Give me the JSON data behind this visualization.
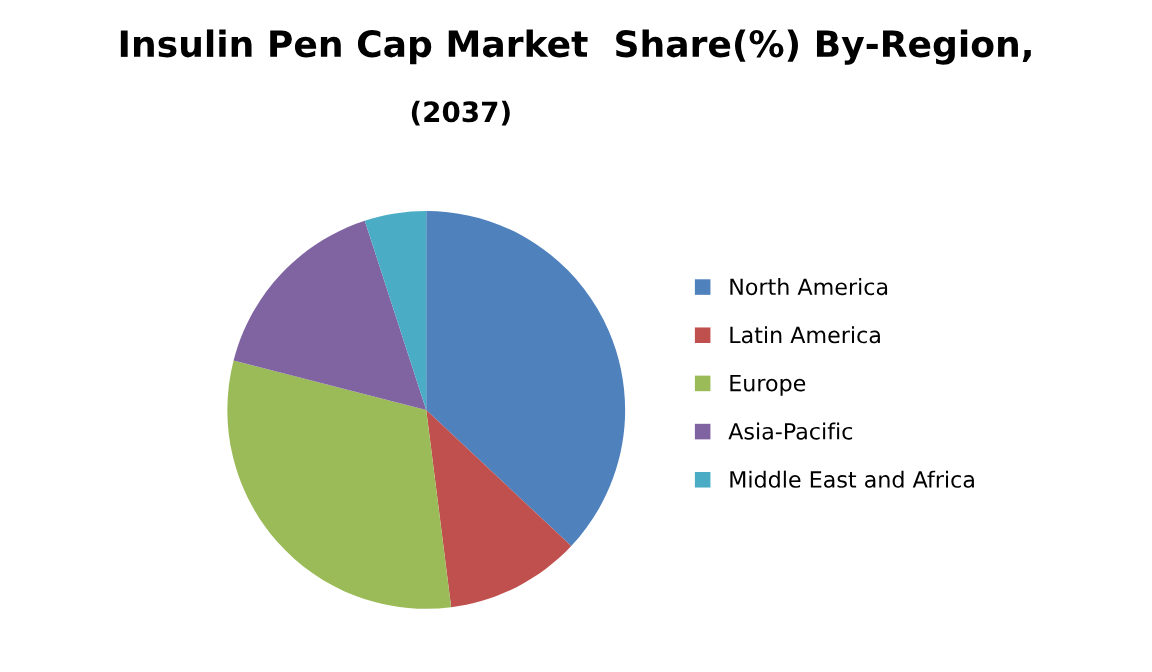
{
  "chart_data": {
    "type": "pie",
    "title": "Insulin Pen Cap Market  Share(%) By-Region,",
    "subtitle": "(2037)",
    "categories": [
      "North America",
      "Latin America",
      "Europe",
      "Asia-Pacific",
      "Middle East and Africa"
    ],
    "values": [
      37,
      11,
      31,
      16,
      5
    ],
    "colors": [
      "#4f81bd",
      "#c0504d",
      "#9bbb59",
      "#8064a2",
      "#4bacc6"
    ],
    "legend": "right"
  }
}
